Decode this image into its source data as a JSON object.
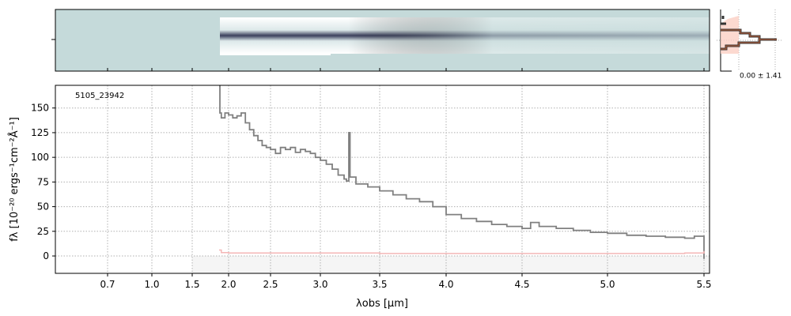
{
  "chart_data": {
    "type": "line",
    "title": "",
    "object_label": "5105_23942",
    "xlabel": "λobs [μm]",
    "ylabel": "fλ [10⁻²⁰ ergs⁻¹cm⁻²Å⁻¹]",
    "xlim": [
      0.55,
      5.52
    ],
    "ylim": [
      -17.6,
      173
    ],
    "xticks": [
      0.7,
      1.0,
      1.5,
      2.0,
      2.5,
      3.0,
      3.5,
      4.0,
      4.5,
      5.0,
      5.5
    ],
    "xtick_labels": [
      "0.7",
      "1.0",
      "1.5",
      "2.0",
      "2.5",
      "3.0",
      "3.5",
      "4.0",
      "4.5",
      "5.0",
      "5.5"
    ],
    "yticks": [
      0,
      25,
      50,
      75,
      100,
      125,
      150
    ],
    "ytick_labels": [
      "0",
      "25",
      "50",
      "75",
      "100",
      "125",
      "150"
    ],
    "grid": true,
    "series": [
      {
        "name": "flux",
        "color": "#808080",
        "x": [
          1.87,
          1.88,
          1.9,
          1.95,
          2.0,
          2.05,
          2.1,
          2.15,
          2.2,
          2.25,
          2.3,
          2.35,
          2.4,
          2.45,
          2.5,
          2.55,
          2.6,
          2.65,
          2.7,
          2.75,
          2.8,
          2.85,
          2.9,
          2.95,
          3.0,
          3.05,
          3.1,
          3.15,
          3.2,
          3.22,
          3.24,
          3.25,
          3.3,
          3.4,
          3.5,
          3.6,
          3.7,
          3.8,
          3.9,
          4.0,
          4.1,
          4.2,
          4.3,
          4.4,
          4.5,
          4.55,
          4.6,
          4.7,
          4.8,
          4.9,
          5.0,
          5.1,
          5.2,
          5.3,
          5.4,
          5.45,
          5.5
        ],
        "y": [
          172,
          145,
          140,
          145,
          143,
          140,
          142,
          145,
          135,
          128,
          122,
          117,
          112,
          110,
          108,
          104,
          110,
          108,
          110,
          105,
          108,
          106,
          104,
          100,
          97,
          93,
          88,
          82,
          78,
          76,
          125,
          80,
          73,
          70,
          66,
          62,
          58,
          55,
          50,
          42,
          38,
          35,
          32,
          30,
          28,
          34,
          30,
          28,
          26,
          24,
          23,
          21,
          20,
          19,
          18,
          20,
          18
        ]
      },
      {
        "name": "error",
        "color": "#f4b6b6",
        "x": [
          1.87,
          1.9,
          2.0,
          2.5,
          3.0,
          3.5,
          4.0,
          4.5,
          5.0,
          5.4,
          5.5
        ],
        "y": [
          6,
          3.5,
          3,
          3,
          3,
          2.5,
          2.5,
          2.5,
          2.5,
          3,
          5
        ]
      }
    ],
    "side_panel": {
      "label": "0.00 ± 1.41"
    }
  }
}
